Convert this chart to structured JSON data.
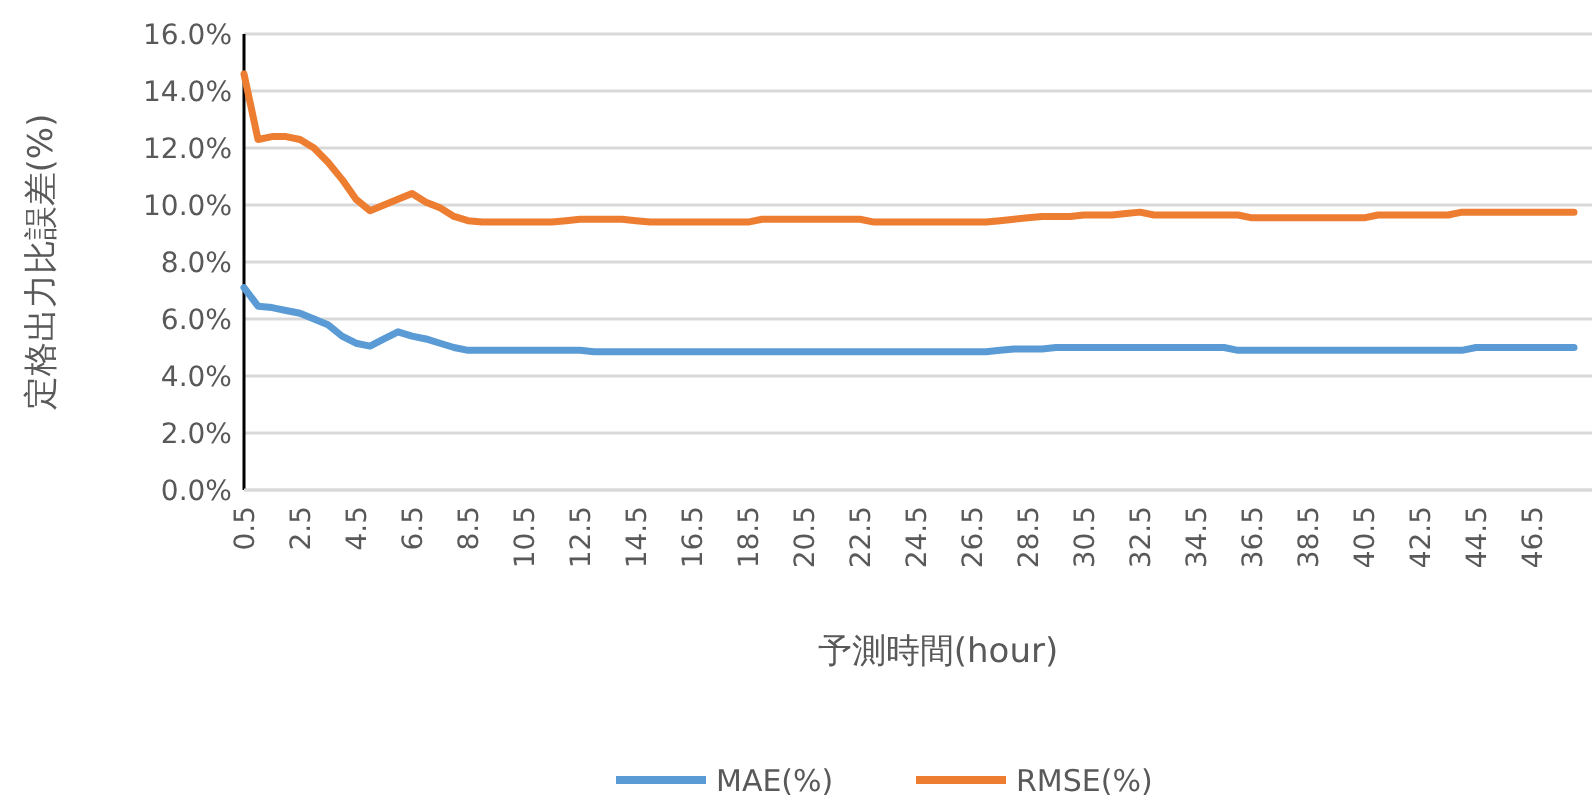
{
  "chart_data": {
    "type": "line",
    "xlabel": "予測時間(hour)",
    "ylabel": "定格出力比誤差(%)",
    "categories": [
      "0.5",
      null,
      null,
      null,
      "2.5",
      null,
      null,
      null,
      "4.5",
      null,
      null,
      null,
      "6.5",
      null,
      null,
      null,
      "8.5",
      null,
      null,
      null,
      "10.5",
      null,
      null,
      null,
      "12.5",
      null,
      null,
      null,
      "14.5",
      null,
      null,
      null,
      "16.5",
      null,
      null,
      null,
      "18.5",
      null,
      null,
      null,
      "20.5",
      null,
      null,
      null,
      "22.5",
      null,
      null,
      null,
      "24.5",
      null,
      null,
      null,
      "26.5",
      null,
      null,
      null,
      "28.5",
      null,
      null,
      null,
      "30.5",
      null,
      null,
      null,
      "32.5",
      null,
      null,
      null,
      "34.5",
      null,
      null,
      null,
      "36.5",
      null,
      null,
      null,
      "38.5",
      null,
      null,
      null,
      "40.5",
      null,
      null,
      null,
      "42.5",
      null,
      null,
      null,
      "44.5",
      null,
      null,
      null,
      "46.5",
      null,
      null,
      null
    ],
    "series": [
      {
        "name": "MAE(%)",
        "color": "#5b9bd5",
        "values": [
          7.1,
          6.45,
          6.4,
          6.3,
          6.2,
          6.0,
          5.8,
          5.4,
          5.15,
          5.05,
          5.3,
          5.55,
          5.4,
          5.3,
          5.15,
          5.0,
          4.9,
          4.9,
          4.9,
          4.9,
          4.9,
          4.9,
          4.9,
          4.9,
          4.9,
          4.85,
          4.85,
          4.85,
          4.85,
          4.85,
          4.85,
          4.85,
          4.85,
          4.85,
          4.85,
          4.85,
          4.85,
          4.85,
          4.85,
          4.85,
          4.85,
          4.85,
          4.85,
          4.85,
          4.85,
          4.85,
          4.85,
          4.85,
          4.85,
          4.85,
          4.85,
          4.85,
          4.85,
          4.85,
          4.9,
          4.95,
          4.95,
          4.95,
          5.0,
          5.0,
          5.0,
          5.0,
          5.0,
          5.0,
          5.0,
          5.0,
          5.0,
          5.0,
          5.0,
          5.0,
          5.0,
          4.9,
          4.9,
          4.9,
          4.9,
          4.9,
          4.9,
          4.9,
          4.9,
          4.9,
          4.9,
          4.9,
          4.9,
          4.9,
          4.9,
          4.9,
          4.9,
          4.9,
          5.0,
          5.0,
          5.0,
          5.0,
          5.0,
          5.0,
          5.0,
          5.0
        ]
      },
      {
        "name": "RMSE(%)",
        "color": "#ed7d31",
        "values": [
          14.6,
          12.3,
          12.4,
          12.4,
          12.3,
          12.0,
          11.5,
          10.9,
          10.2,
          9.8,
          10.0,
          10.2,
          10.4,
          10.1,
          9.9,
          9.6,
          9.45,
          9.4,
          9.4,
          9.4,
          9.4,
          9.4,
          9.4,
          9.45,
          9.5,
          9.5,
          9.5,
          9.5,
          9.45,
          9.4,
          9.4,
          9.4,
          9.4,
          9.4,
          9.4,
          9.4,
          9.4,
          9.5,
          9.5,
          9.5,
          9.5,
          9.5,
          9.5,
          9.5,
          9.5,
          9.4,
          9.4,
          9.4,
          9.4,
          9.4,
          9.4,
          9.4,
          9.4,
          9.4,
          9.45,
          9.5,
          9.55,
          9.6,
          9.6,
          9.6,
          9.65,
          9.65,
          9.65,
          9.7,
          9.75,
          9.65,
          9.65,
          9.65,
          9.65,
          9.65,
          9.65,
          9.65,
          9.55,
          9.55,
          9.55,
          9.55,
          9.55,
          9.55,
          9.55,
          9.55,
          9.55,
          9.65,
          9.65,
          9.65,
          9.65,
          9.65,
          9.65,
          9.75,
          9.75,
          9.75,
          9.75,
          9.75,
          9.75,
          9.75,
          9.75,
          9.75
        ]
      }
    ],
    "ylim": [
      0,
      16
    ],
    "yticks": [
      {
        "value": 0,
        "label": "0.0%"
      },
      {
        "value": 2,
        "label": "2.0%"
      },
      {
        "value": 4,
        "label": "4.0%"
      },
      {
        "value": 6,
        "label": "6.0%"
      },
      {
        "value": 8,
        "label": "8.0%"
      },
      {
        "value": 10,
        "label": "10.0%"
      },
      {
        "value": 12,
        "label": "12.0%"
      },
      {
        "value": 14,
        "label": "14.0%"
      },
      {
        "value": 16,
        "label": "16.0%"
      }
    ],
    "grid": "y",
    "legend": "bottom",
    "line_style": "solid",
    "marker": "none"
  }
}
